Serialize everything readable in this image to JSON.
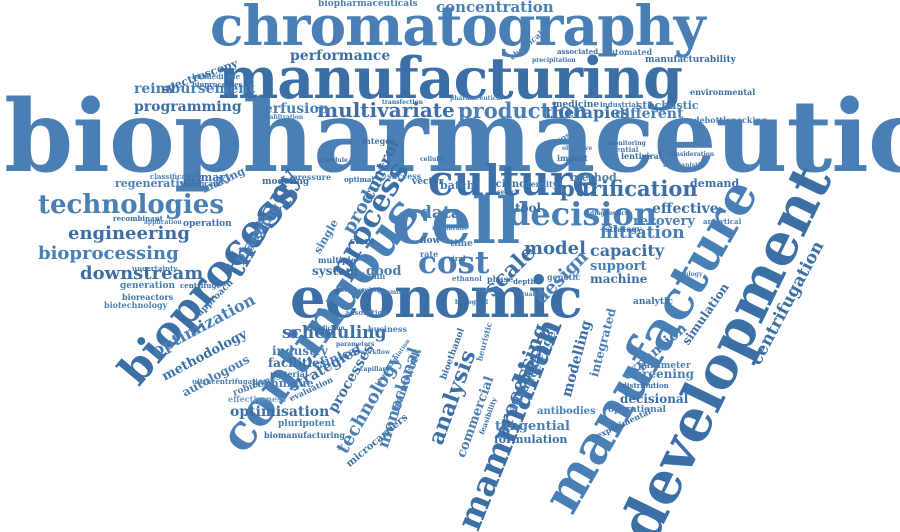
{
  "colors": {
    "primary": "#4a7fb5",
    "dark": "#3b6fa6",
    "light": "#6d9bc9",
    "background": "#ffffff"
  },
  "words": [
    "biopharmaceutical",
    "manufacturing",
    "chromatography",
    "development",
    "manufacture",
    "economic",
    "continuous",
    "bioprocess",
    "cell",
    "culture",
    "cost",
    "mammalian",
    "decision",
    "purification",
    "technologies",
    "therapy",
    "production",
    "multivariate",
    "concentration",
    "performance",
    "reimbursement",
    "programming",
    "perfusion",
    "therapies",
    "different",
    "engineering",
    "bioprocessing",
    "downstream",
    "optimization",
    "methodology",
    "autologous",
    "scheduling",
    "industry",
    "facilities",
    "clinical",
    "strategies",
    "technique",
    "optimisation",
    "effectiveness",
    "pluripotent",
    "biomanufacturing",
    "technology",
    "processes",
    "framework",
    "microcarriers",
    "monoclonal",
    "analysis",
    "commercial",
    "processing",
    "advanced",
    "challenge",
    "tangential",
    "formulation",
    "antibodies",
    "modelling",
    "integrated",
    "centrifugation",
    "expansion",
    "simulation",
    "screening",
    "decisional",
    "operational",
    "experimental",
    "filtration",
    "capacity",
    "support",
    "machine",
    "recovery",
    "effective",
    "analytical",
    "demand",
    "method",
    "model",
    "design",
    "scale",
    "data",
    "tool",
    "good",
    "system",
    "planning",
    "process",
    "product",
    "control",
    "regenerative",
    "primary",
    "making",
    "modeling",
    "batch",
    "science",
    "density",
    "vector",
    "biopharmaceuticals",
    "spectroscopy",
    "biomedicine",
    "bioprocesses",
    "stochastic",
    "medicine",
    "industrial",
    "environmental",
    "debottlenecking",
    "manufacturability",
    "automated",
    "associated",
    "chemical",
    "precipitation",
    "diafiltration",
    "lentiviral",
    "potential",
    "impact",
    "glucose",
    "stem",
    "column",
    "multiple",
    "single",
    "phase",
    "genetic",
    "analytic",
    "parameter",
    "distribution",
    "generation",
    "bioreactors",
    "biotechnology",
    "centrifuge",
    "uncertainty",
    "recombinant",
    "application",
    "operation",
    "classification",
    "significant",
    "business",
    "material",
    "robustness",
    "evaluation",
    "ultracentrifugation",
    "approach",
    "constant",
    "integer",
    "pressure",
    "optimal",
    "success",
    "strategy",
    "time",
    "flow",
    "rate",
    "depth",
    "ethanol",
    "viral",
    "objective",
    "diagnostics",
    "membrane",
    "monitoring",
    "adsorption",
    "prediction",
    "quality",
    "bioethanol",
    "heuristic",
    "feasibility",
    "biomanipulation",
    "cellular",
    "raman",
    "biological",
    "mechanistic",
    "schedule",
    "biochemical",
    "research",
    "pharmaceutical",
    "consideration",
    "workflow",
    "parameters",
    "chemistry",
    "capillary",
    "rheology",
    "transfection",
    "bioreactor",
    "nanoparticles"
  ]
}
